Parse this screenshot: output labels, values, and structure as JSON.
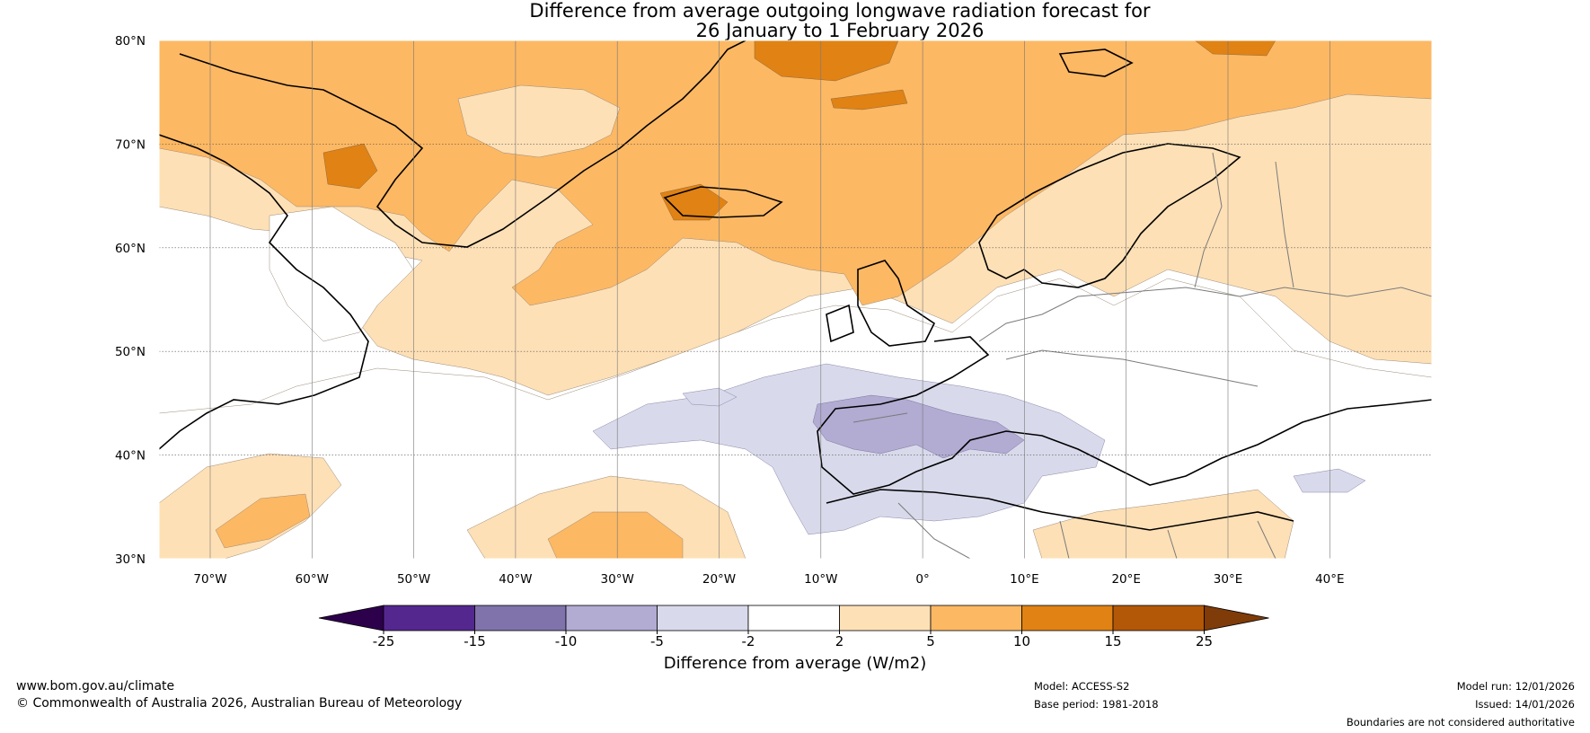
{
  "title": {
    "line1": "Difference from average outgoing longwave radiation forecast for",
    "line2": "26 January to 1 February 2026"
  },
  "axes": {
    "lat_labels": [
      "80°N",
      "70°N",
      "60°N",
      "50°N",
      "40°N",
      "30°N"
    ],
    "lon_labels": [
      "70°W",
      "60°W",
      "50°W",
      "40°W",
      "30°W",
      "20°W",
      "10°W",
      "0°",
      "10°E",
      "20°E",
      "30°E",
      "40°E"
    ]
  },
  "colorbar": {
    "ticks": [
      "-25",
      "-15",
      "-10",
      "-5",
      "-2",
      "2",
      "5",
      "10",
      "15",
      "25"
    ],
    "colors": [
      "#54278f",
      "#8073ac",
      "#b2abd2",
      "#d8daeb",
      "#ffffff",
      "#fee0b6",
      "#fdb863",
      "#e08214",
      "#b35806"
    ],
    "under_color": "#2d004b",
    "over_color": "#7f3b08",
    "label": "Difference from average (W/m2)"
  },
  "footer": {
    "website": "www.bom.gov.au/climate",
    "copyright": "© Commonwealth of Australia 2026, Australian Bureau of Meteorology",
    "model": "Model: ACCESS-S2",
    "base_period": "Base period: 1981-2018",
    "model_run": "Model run: 12/01/2026",
    "issued": "Issued: 14/01/2026",
    "disclaimer": "Boundaries are not considered authoritative"
  }
}
